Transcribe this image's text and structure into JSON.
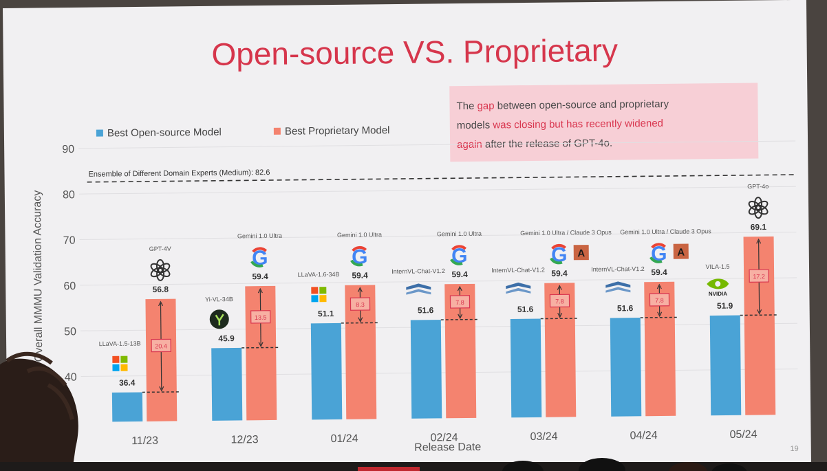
{
  "slide": {
    "title": "Open-source VS. Proprietary",
    "page_number": "19",
    "callout": [
      {
        "text": "The ",
        "color": "#4a4a4a"
      },
      {
        "text": "gap",
        "color": "#d9364f"
      },
      {
        "text": " between open-source and proprietary",
        "color": "#4a4a4a"
      },
      {
        "text": "\n",
        "color": "#4a4a4a"
      },
      {
        "text": "models ",
        "color": "#4a4a4a"
      },
      {
        "text": "was closing but has recently widened",
        "color": "#d9364f"
      },
      {
        "text": "\n",
        "color": "#4a4a4a"
      },
      {
        "text": "again",
        "color": "#d9364f"
      },
      {
        "text": " after the release of GPT-4o.",
        "color": "#4a4a4a"
      }
    ]
  },
  "chart_data": {
    "type": "bar",
    "xlabel": "Release Date",
    "ylabel": "Overall MMMU Validation Accuracy",
    "ylim": [
      30,
      90
    ],
    "yticks": [
      40,
      50,
      60,
      70,
      80,
      90
    ],
    "grid": true,
    "legend_position": "top-left",
    "categories": [
      "11/23",
      "12/23",
      "01/24",
      "02/24",
      "03/24",
      "04/24",
      "05/24"
    ],
    "series": [
      {
        "name": "Best Open-source Model",
        "color": "#4aa3d6",
        "values": [
          36.4,
          45.9,
          51.1,
          51.6,
          51.6,
          51.6,
          51.9
        ],
        "models": [
          "LLaVA-1.5-13B",
          "Yi-VL-34B",
          "LLaVA-1.6-34B",
          "InternVL-Chat-V1.2",
          "InternVL-Chat-V1.2",
          "InternVL-Chat-V1.2",
          "VILA-1.5"
        ],
        "icons": [
          "microsoft-logo-icon",
          "yi-logo-icon",
          "microsoft-logo-icon",
          "shanghai-ai-lab-logo-icon",
          "shanghai-ai-lab-logo-icon",
          "shanghai-ai-lab-logo-icon",
          "nvidia-logo-icon"
        ]
      },
      {
        "name": "Best Proprietary Model",
        "color": "#f4836f",
        "values": [
          56.8,
          59.4,
          59.4,
          59.4,
          59.4,
          59.4,
          69.1
        ],
        "models": [
          "GPT-4V",
          "Gemini 1.0 Ultra",
          "Gemini 1.0 Ultra",
          "Gemini 1.0 Ultra",
          "Gemini 1.0 Ultra / Claude 3 Opus",
          "Gemini 1.0 Ultra / Claude 3 Opus",
          "GPT-4o"
        ],
        "icons": [
          "openai-logo-icon",
          "google-logo-icon",
          "google-logo-icon",
          "google-logo-icon",
          "google-logo-icon",
          "google-logo-icon",
          "openai-logo-icon"
        ],
        "extra_icons": [
          null,
          null,
          null,
          null,
          "anthropic-logo-icon",
          "anthropic-logo-icon",
          null
        ]
      }
    ],
    "gaps": [
      20.4,
      13.5,
      8.3,
      7.8,
      7.8,
      7.8,
      17.2
    ],
    "reference_line": {
      "label": "Ensemble of Different Domain Experts (Medium): 82.6",
      "value": 82.6
    }
  }
}
